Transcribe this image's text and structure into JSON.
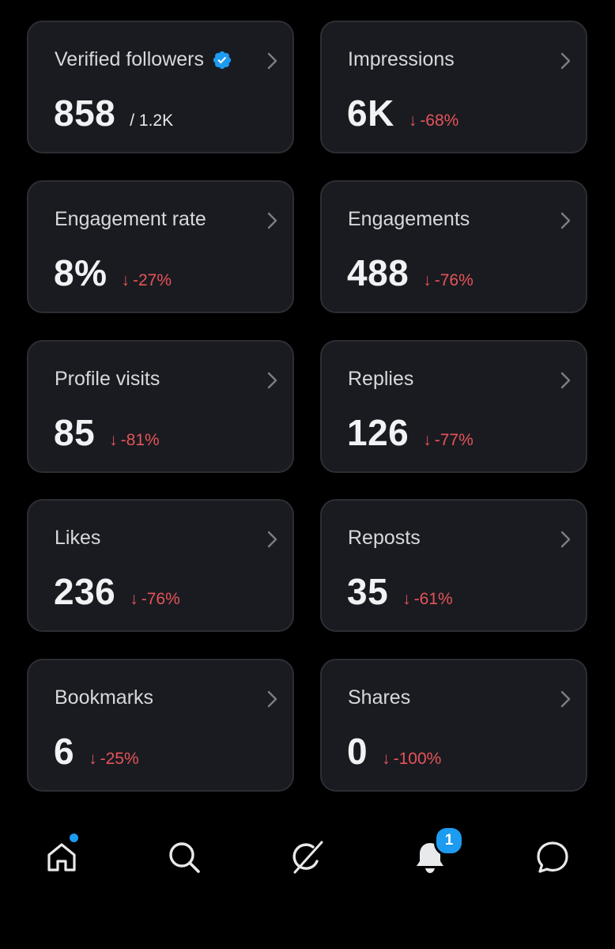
{
  "metrics": [
    {
      "title": "Verified followers",
      "value": "858",
      "total": "/ 1.2K",
      "verified_icon": "verified-badge-icon",
      "accent": "#1d9bf0"
    },
    {
      "title": "Impressions",
      "value": "6K",
      "delta": "-68%"
    },
    {
      "title": "Engagement rate",
      "value": "8%",
      "delta": "-27%"
    },
    {
      "title": "Engagements",
      "value": "488",
      "delta": "-76%"
    },
    {
      "title": "Profile visits",
      "value": "85",
      "delta": "-81%"
    },
    {
      "title": "Replies",
      "value": "126",
      "delta": "-77%"
    },
    {
      "title": "Likes",
      "value": "236",
      "delta": "-76%"
    },
    {
      "title": "Reposts",
      "value": "35",
      "delta": "-61%"
    },
    {
      "title": "Bookmarks",
      "value": "6",
      "delta": "-25%"
    },
    {
      "title": "Shares",
      "value": "0",
      "delta": "-100%"
    }
  ],
  "delta_arrow": "↓",
  "colors": {
    "negative": "#e4545a",
    "accent": "#1d9bf0",
    "card_bg": "#1a1b20"
  },
  "nav": {
    "items": [
      "home-icon",
      "search-icon",
      "grok-icon",
      "notifications-bell-icon",
      "messages-icon"
    ],
    "notification_count": "1"
  }
}
